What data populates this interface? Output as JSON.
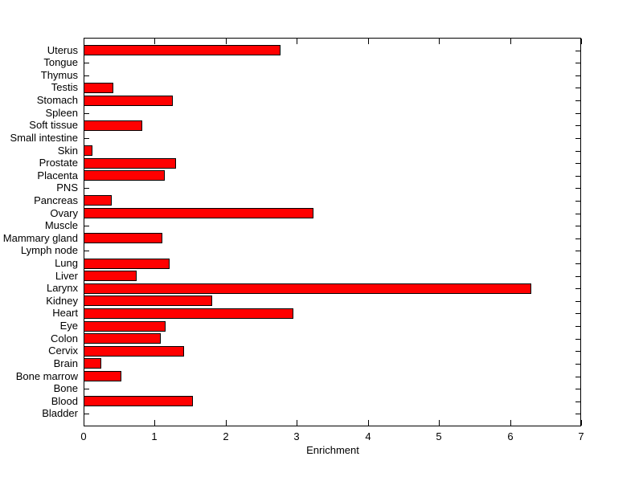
{
  "chart_data": {
    "type": "bar",
    "orientation": "horizontal",
    "title": "",
    "xlabel": "Enrichment",
    "ylabel": "",
    "xlim": [
      0,
      7
    ],
    "xticks": [
      0,
      1,
      2,
      3,
      4,
      5,
      6,
      7
    ],
    "grid": false,
    "legend": null,
    "bar_color": "#ff0000",
    "bar_edge_color": "#000000",
    "axis_color": "#000000",
    "background_color": "#ffffff",
    "categories_top_to_bottom": [
      "Uterus",
      "Tongue",
      "Thymus",
      "Testis",
      "Stomach",
      "Spleen",
      "Soft tissue",
      "Small intestine",
      "Skin",
      "Prostate",
      "Placenta",
      "PNS",
      "Pancreas",
      "Ovary",
      "Muscle",
      "Mammary gland",
      "Lymph node",
      "Lung",
      "Liver",
      "Larynx",
      "Kidney",
      "Heart",
      "Eye",
      "Colon",
      "Cervix",
      "Brain",
      "Bone marrow",
      "Bone",
      "Blood",
      "Bladder"
    ],
    "values": [
      2.77,
      0,
      0,
      0.42,
      1.26,
      0,
      0.82,
      0,
      0.13,
      1.3,
      1.14,
      0,
      0.4,
      3.23,
      0,
      1.11,
      0,
      1.21,
      0.75,
      6.3,
      1.81,
      2.95,
      1.15,
      1.08,
      1.41,
      0.25,
      0.53,
      0,
      1.54,
      0
    ]
  }
}
